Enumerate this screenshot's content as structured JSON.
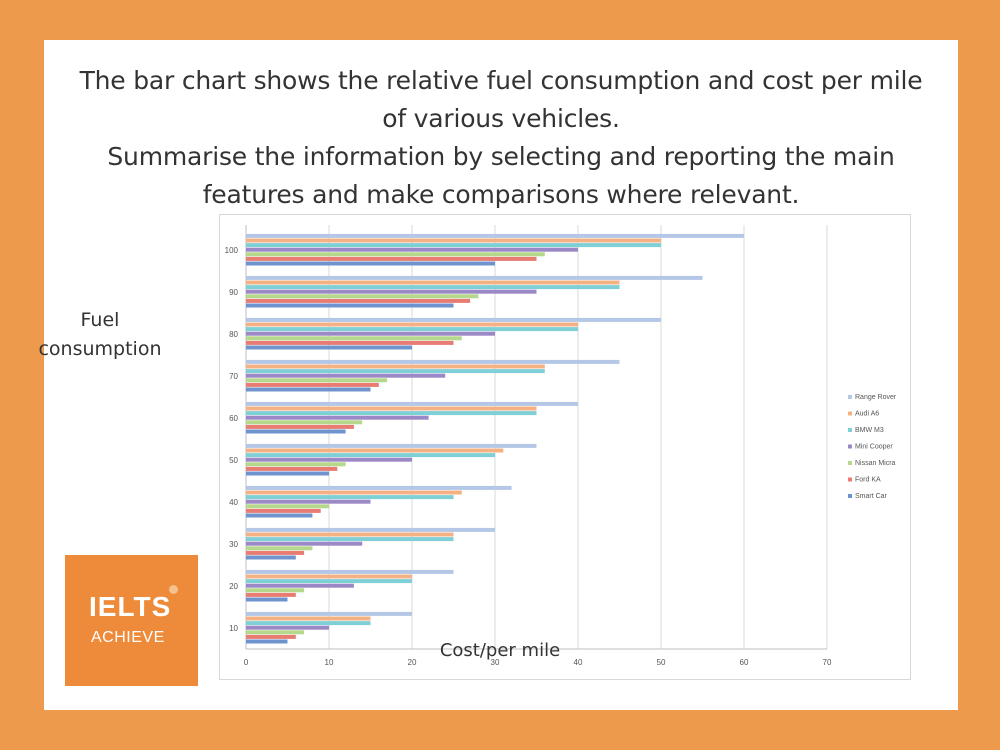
{
  "prompt": {
    "line1": "The bar chart shows the relative fuel consumption and cost per mile",
    "line2": "of various vehicles.",
    "line3": "Summarise the information by selecting and reporting the main",
    "line4": "features and make comparisons where relevant."
  },
  "axis_titles": {
    "y_line1": "Fuel",
    "y_line2": "consumption",
    "x": "Cost/per mile"
  },
  "logo": {
    "line1": "IELTS",
    "line2": "ACHIEVE"
  },
  "colors": {
    "background": "#ee9a4d",
    "logo": "#ee8b3a"
  },
  "chart_data": {
    "type": "bar",
    "orientation": "horizontal",
    "categories": [
      "10",
      "20",
      "30",
      "40",
      "50",
      "60",
      "70",
      "80",
      "90",
      "100"
    ],
    "xlim": [
      0,
      70
    ],
    "xticks": [
      "0",
      "10",
      "20",
      "30",
      "40",
      "50",
      "60",
      "70"
    ],
    "grid": true,
    "legend_position": "right",
    "series": [
      {
        "name": "Range Rover",
        "color": "#b4c7e7",
        "values": [
          20,
          25,
          30,
          32,
          35,
          40,
          45,
          50,
          55,
          60
        ]
      },
      {
        "name": "Audi A6",
        "color": "#f4b183",
        "values": [
          15,
          20,
          25,
          26,
          31,
          35,
          36,
          40,
          45,
          50
        ]
      },
      {
        "name": "BMW M3",
        "color": "#7ecfd6",
        "values": [
          15,
          20,
          25,
          25,
          30,
          35,
          36,
          40,
          45,
          50
        ]
      },
      {
        "name": "Mini Cooper",
        "color": "#9b88c6",
        "values": [
          10,
          13,
          14,
          15,
          20,
          22,
          24,
          30,
          35,
          40
        ]
      },
      {
        "name": "Nissan Micra",
        "color": "#b5d88c",
        "values": [
          7,
          7,
          8,
          10,
          12,
          14,
          17,
          26,
          28,
          36
        ]
      },
      {
        "name": "Ford KA",
        "color": "#e87b72",
        "values": [
          6,
          6,
          7,
          9,
          11,
          13,
          16,
          25,
          27,
          35
        ]
      },
      {
        "name": "Smart Car",
        "color": "#6f93cc",
        "values": [
          5,
          5,
          6,
          8,
          10,
          12,
          15,
          20,
          25,
          30
        ]
      }
    ]
  }
}
